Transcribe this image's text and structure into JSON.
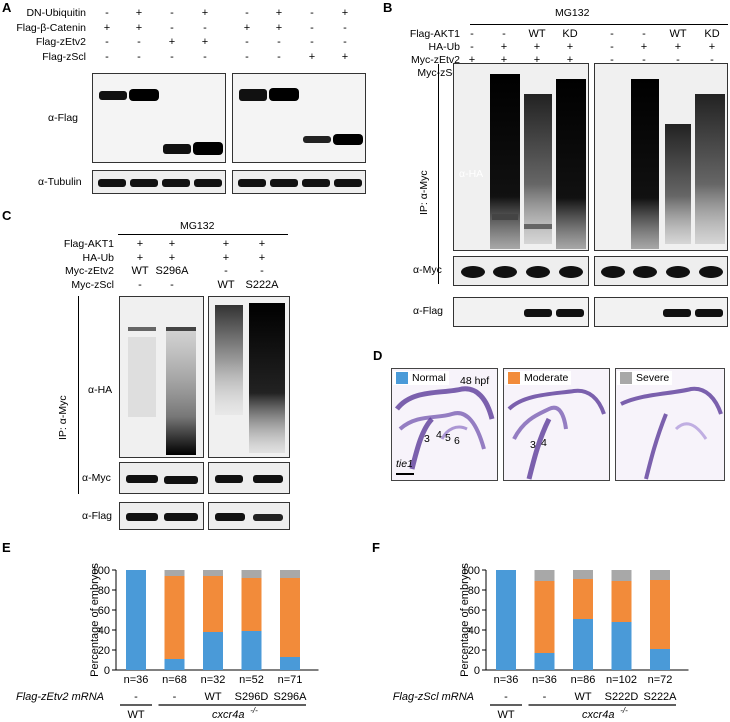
{
  "colors": {
    "normal": "#4a9ad8",
    "moderate": "#f28b3a",
    "severe": "#a8a8a8"
  },
  "panelA": {
    "letter": "A",
    "rows": [
      {
        "label": "DN-Ubiquitin",
        "values": [
          "-",
          "+",
          "-",
          "+",
          "-",
          "+",
          "-",
          "+"
        ]
      },
      {
        "label": "Flag-β-Catenin",
        "values": [
          "+",
          "+",
          "-",
          "-",
          "+",
          "+",
          "-",
          "-"
        ]
      },
      {
        "label": "Flag-zEtv2",
        "values": [
          "-",
          "-",
          "+",
          "+",
          "-",
          "-",
          "-",
          "-"
        ]
      },
      {
        "label": "Flag-zScl",
        "values": [
          "-",
          "-",
          "-",
          "-",
          "-",
          "-",
          "+",
          "+"
        ]
      }
    ],
    "blots": {
      "flag": "α-Flag",
      "tubulin": "α-Tubulin"
    }
  },
  "panelB": {
    "letter": "B",
    "header": "MG132",
    "rows": [
      {
        "label": "Flag-AKT1",
        "values": [
          "-",
          "-",
          "WT",
          "KD",
          "-",
          "-",
          "WT",
          "KD"
        ]
      },
      {
        "label": "HA-Ub",
        "values": [
          "-",
          "+",
          "+",
          "+",
          "-",
          "+",
          "+",
          "+"
        ]
      },
      {
        "label": "Myc-zEtv2",
        "values": [
          "+",
          "+",
          "+",
          "+",
          "-",
          "-",
          "-",
          "-"
        ]
      },
      {
        "label": "Myc-zScl",
        "values": [
          "-",
          "-",
          "-",
          "-",
          "+",
          "+",
          "+",
          "+"
        ]
      }
    ],
    "ip": "IP: α-Myc",
    "blots": {
      "ha": "α-HA",
      "myc": "α-Myc",
      "flag": "α-Flag"
    }
  },
  "panelC": {
    "letter": "C",
    "header": "MG132",
    "rows": [
      {
        "label": "Flag-AKT1",
        "values": [
          "+",
          "+",
          "+",
          "+"
        ]
      },
      {
        "label": "HA-Ub",
        "values": [
          "+",
          "+",
          "+",
          "+"
        ]
      },
      {
        "label": "Myc-zEtv2",
        "values": [
          "WT",
          "S296A",
          "-",
          "-"
        ]
      },
      {
        "label": "Myc-zScl",
        "values": [
          "-",
          "-",
          "WT",
          "S222A"
        ]
      }
    ],
    "ip": "IP: α-Myc",
    "blots": {
      "ha": "α-HA",
      "myc": "α-Myc",
      "flag": "α-Flag"
    }
  },
  "panelD": {
    "letter": "D",
    "legend": [
      "Normal",
      "Moderate",
      "Severe"
    ],
    "stage": "48 hpf",
    "marker": "tie1",
    "normal_numbers": [
      "3",
      "4",
      "5",
      "6"
    ],
    "moderate_numbers": [
      "3",
      "4"
    ]
  },
  "panelE": {
    "letter": "E",
    "ylabel": "Percentage of embryos",
    "yticks": [
      "0",
      "20",
      "40",
      "60",
      "80",
      "100"
    ],
    "n_labels": [
      "n=36",
      "n=68",
      "n=32",
      "n=52",
      "n=71"
    ],
    "mrna_label": "Flag-zEtv2 mRNA",
    "mrna_values": [
      "-",
      "-",
      "WT",
      "S296D",
      "S296A"
    ],
    "group_wt": "WT",
    "group_mut": "cxcr4a",
    "group_mut_sup": "-/-"
  },
  "panelF": {
    "letter": "F",
    "ylabel": "Percentage of embryos",
    "yticks": [
      "0",
      "20",
      "40",
      "60",
      "80",
      "100"
    ],
    "n_labels": [
      "n=36",
      "n=36",
      "n=86",
      "n=102",
      "n=72"
    ],
    "mrna_label": "Flag-zScl mRNA",
    "mrna_values": [
      "-",
      "-",
      "WT",
      "S222D",
      "S222A"
    ],
    "group_wt": "WT",
    "group_mut": "cxcr4a",
    "group_mut_sup": "-/-"
  },
  "chart_data": [
    {
      "type": "bar",
      "categories": [
        "WT",
        "cxcr4a-/-",
        "cxcr4a-/- + WT",
        "cxcr4a-/- + S296D",
        "cxcr4a-/- + S296A"
      ],
      "series": [
        {
          "name": "Normal",
          "values": [
            100,
            11,
            38,
            39,
            13
          ]
        },
        {
          "name": "Moderate",
          "values": [
            0,
            83,
            56,
            53,
            79
          ]
        },
        {
          "name": "Severe",
          "values": [
            0,
            6,
            6,
            8,
            8
          ]
        }
      ],
      "ylabel": "Percentage of embryos",
      "ylim": [
        0,
        100
      ]
    },
    {
      "type": "bar",
      "categories": [
        "WT",
        "cxcr4a-/-",
        "cxcr4a-/- + WT",
        "cxcr4a-/- + S222D",
        "cxcr4a-/- + S222A"
      ],
      "series": [
        {
          "name": "Normal",
          "values": [
            100,
            17,
            51,
            48,
            21
          ]
        },
        {
          "name": "Moderate",
          "values": [
            0,
            72,
            40,
            41,
            69
          ]
        },
        {
          "name": "Severe",
          "values": [
            0,
            11,
            9,
            11,
            10
          ]
        }
      ],
      "ylabel": "Percentage of embryos",
      "ylim": [
        0,
        100
      ]
    }
  ]
}
